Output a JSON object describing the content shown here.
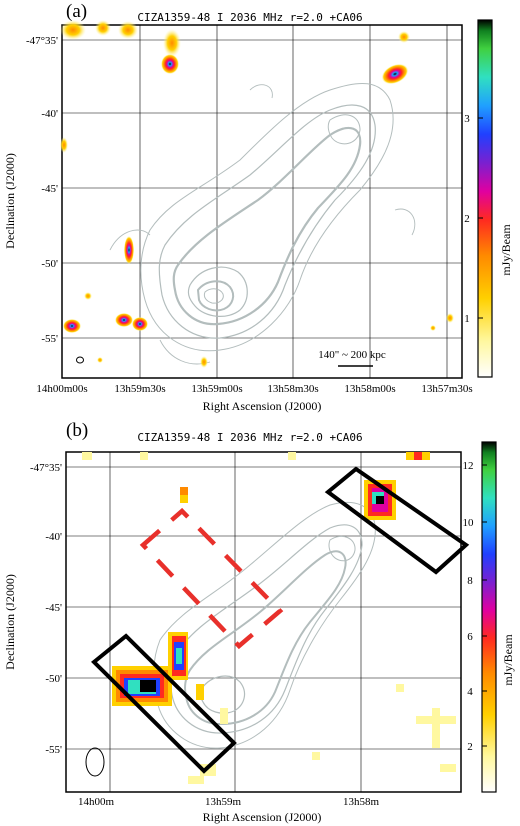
{
  "panels": [
    {
      "label": "(a)",
      "title": "CIZA1359-48 I 2036 MHz  r=2.0 +CA06",
      "xlabel": "Right Ascension (J2000)",
      "ylabel": "Declination (J2000)",
      "colorbar_label": "mJy/Beam",
      "yticks": [
        "-47°35'",
        "-40'",
        "-45'",
        "-50'",
        "-55'"
      ],
      "xticks": [
        "14h00m00s",
        "13h59m30s",
        "13h59m00s",
        "13h58m30s",
        "13h58m00s",
        "13h57m30s"
      ],
      "cbar_ticks": [
        "1",
        "2",
        "3"
      ],
      "scalebar": "140\" ~ 200 kpc"
    },
    {
      "label": "(b)",
      "title": "CIZA1359-48 I 2036 MHz  r=2.0 +CA06",
      "xlabel": "Right Ascension (J2000)",
      "ylabel": "Declination (J2000)",
      "colorbar_label": "mJy/Beam",
      "yticks": [
        "-47°35'",
        "-40'",
        "-45'",
        "-50'",
        "-55'"
      ],
      "xticks": [
        "14h00m",
        "13h59m",
        "13h58m"
      ],
      "cbar_ticks": [
        "2",
        "4",
        "6",
        "8",
        "10",
        "12"
      ]
    }
  ],
  "colors": {
    "contour": "#b3bdbd",
    "rect": "#000000",
    "dashed_rect": "#e8302b"
  }
}
